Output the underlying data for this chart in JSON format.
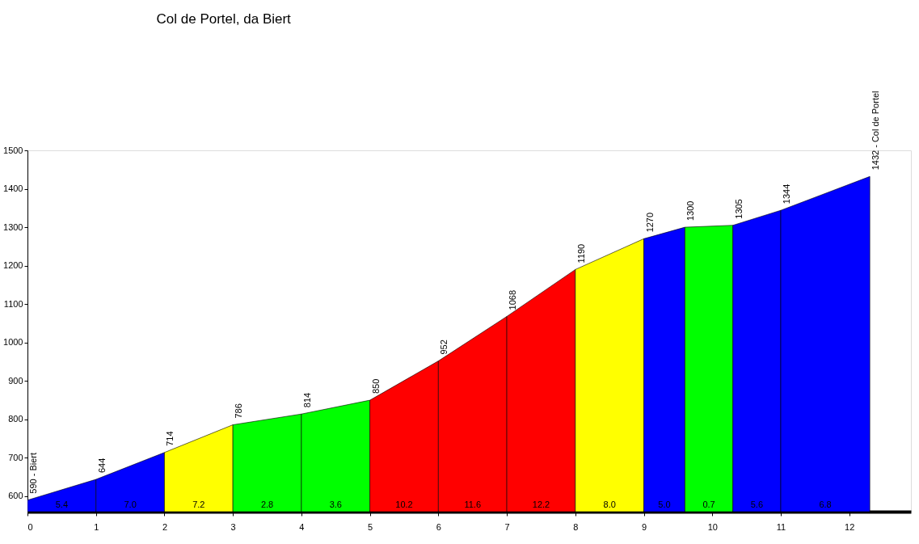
{
  "chart_data": {
    "type": "area",
    "title": "Col de Portel, da Biert",
    "series": [
      {
        "x": [
          0,
          1
        ],
        "values": [
          590,
          644
        ],
        "color": "#0000ff"
      },
      {
        "x": [
          1,
          2
        ],
        "values": [
          644,
          714
        ],
        "color": "#0000ff"
      },
      {
        "x": [
          2,
          3
        ],
        "values": [
          714,
          786
        ],
        "color": "#ffff00"
      },
      {
        "x": [
          3,
          4
        ],
        "values": [
          786,
          814
        ],
        "color": "#00ff00"
      },
      {
        "x": [
          4,
          5
        ],
        "values": [
          814,
          850
        ],
        "color": "#00ff00"
      },
      {
        "x": [
          5,
          6
        ],
        "values": [
          850,
          952
        ],
        "color": "#ff0000"
      },
      {
        "x": [
          6,
          7
        ],
        "values": [
          952,
          1068
        ],
        "color": "#ff0000"
      },
      {
        "x": [
          7,
          8
        ],
        "values": [
          1068,
          1190
        ],
        "color": "#ff0000"
      },
      {
        "x": [
          8,
          9
        ],
        "values": [
          1190,
          1270
        ],
        "color": "#ffff00"
      },
      {
        "x": [
          9,
          9.6
        ],
        "values": [
          1270,
          1300
        ],
        "color": "#0000ff"
      },
      {
        "x": [
          9.6,
          10.3
        ],
        "values": [
          1300,
          1305
        ],
        "color": "#00ff00"
      },
      {
        "x": [
          10.3,
          11
        ],
        "values": [
          1305,
          1344
        ],
        "color": "#0000ff"
      },
      {
        "x": [
          11,
          12.3
        ],
        "values": [
          1344,
          1432
        ],
        "color": "#0000ff"
      }
    ],
    "annotations": [
      {
        "text": "590 - Biert",
        "x": 0,
        "y": 590
      },
      {
        "text": "644",
        "x": 1,
        "y": 644
      },
      {
        "text": "714",
        "x": 2,
        "y": 714
      },
      {
        "text": "786",
        "x": 3,
        "y": 786
      },
      {
        "text": "814",
        "x": 4,
        "y": 814
      },
      {
        "text": "850",
        "x": 5,
        "y": 850
      },
      {
        "text": "952",
        "x": 6,
        "y": 952
      },
      {
        "text": "1068",
        "x": 7,
        "y": 1068
      },
      {
        "text": "1190",
        "x": 8,
        "y": 1190
      },
      {
        "text": "1270",
        "x": 9,
        "y": 1270
      },
      {
        "text": "1300",
        "x": 9.6,
        "y": 1300
      },
      {
        "text": "1305",
        "x": 10.3,
        "y": 1305
      },
      {
        "text": "1344",
        "x": 11,
        "y": 1344
      },
      {
        "text": "1432 - Col de Portel",
        "x": 12.3,
        "y": 1432
      },
      "5.4",
      "7.0",
      "7.2",
      "2.8",
      "3.6",
      "10.2",
      "11.6",
      "12.2",
      "8.0",
      "5.0",
      "0.7",
      "5.6",
      "6.8"
    ],
    "xlim": [
      0,
      12.9
    ],
    "xticks": [
      0,
      1,
      2,
      3,
      4,
      5,
      6,
      7,
      8,
      9,
      10,
      11,
      12
    ],
    "ylim": [
      560,
      1500
    ],
    "yticks": [
      600,
      700,
      800,
      900,
      1000,
      1100,
      1200,
      1300,
      1400,
      1500
    ],
    "grid": false
  }
}
